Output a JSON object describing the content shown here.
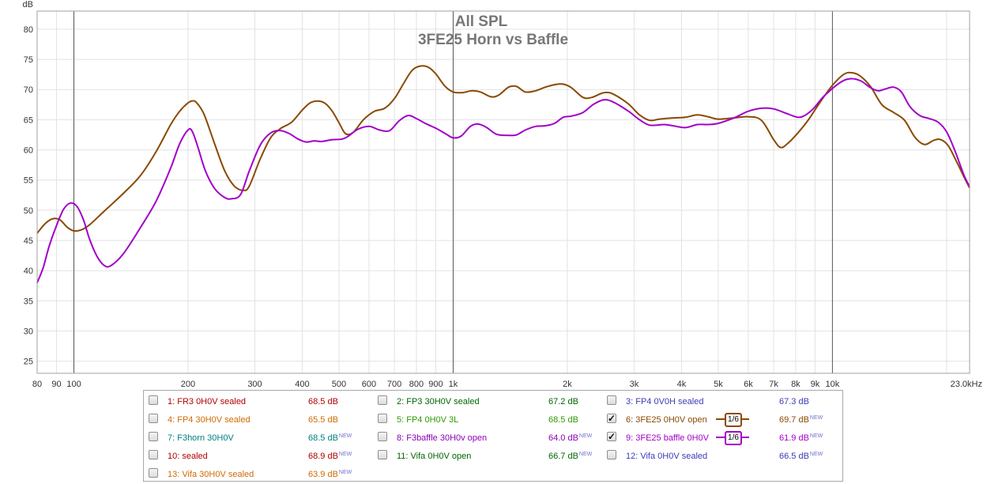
{
  "chart_data": {
    "type": "line",
    "title": "All SPL",
    "subtitle": "3FE25 Horn vs Baffle",
    "y_unit": "dB",
    "x_unit_label": "23.0kHz",
    "xscale": "log",
    "xlim": [
      80,
      23000
    ],
    "ylim": [
      23,
      83
    ],
    "yticks": [
      25,
      30,
      35,
      40,
      45,
      50,
      55,
      60,
      65,
      70,
      75,
      80
    ],
    "xticks": [
      {
        "v": 80,
        "t": "80"
      },
      {
        "v": 90,
        "t": "90"
      },
      {
        "v": 100,
        "t": "100"
      },
      {
        "v": 200,
        "t": "200"
      },
      {
        "v": 300,
        "t": "300"
      },
      {
        "v": 400,
        "t": "400"
      },
      {
        "v": 500,
        "t": "500"
      },
      {
        "v": 600,
        "t": "600"
      },
      {
        "v": 700,
        "t": "700"
      },
      {
        "v": 800,
        "t": "800"
      },
      {
        "v": 900,
        "t": "900"
      },
      {
        "v": 1000,
        "t": "1k"
      },
      {
        "v": 2000,
        "t": "2k"
      },
      {
        "v": 3000,
        "t": "3k"
      },
      {
        "v": 4000,
        "t": "4k"
      },
      {
        "v": 5000,
        "t": "5k"
      },
      {
        "v": 6000,
        "t": "6k"
      },
      {
        "v": 7000,
        "t": "7k"
      },
      {
        "v": 8000,
        "t": "8k"
      },
      {
        "v": 9000,
        "t": "9k"
      },
      {
        "v": 10000,
        "t": "10k"
      }
    ],
    "grid": true,
    "legend_position": "bottom",
    "series": [
      {
        "name": "6: 3FE25 0H0V open",
        "color": "#8a4a00",
        "points": [
          [
            80,
            46.2
          ],
          [
            84,
            47.8
          ],
          [
            88,
            48.6
          ],
          [
            92,
            48.4
          ],
          [
            96,
            47.2
          ],
          [
            100,
            46.6
          ],
          [
            105,
            46.8
          ],
          [
            110,
            47.6
          ],
          [
            120,
            49.8
          ],
          [
            135,
            52.8
          ],
          [
            150,
            55.8
          ],
          [
            165,
            59.8
          ],
          [
            180,
            64.2
          ],
          [
            190,
            66.4
          ],
          [
            200,
            67.8
          ],
          [
            205,
            68.1
          ],
          [
            210,
            67.9
          ],
          [
            220,
            66.0
          ],
          [
            235,
            61.0
          ],
          [
            250,
            56.5
          ],
          [
            265,
            54.0
          ],
          [
            280,
            53.3
          ],
          [
            290,
            54.0
          ],
          [
            310,
            58.5
          ],
          [
            330,
            62.0
          ],
          [
            350,
            63.5
          ],
          [
            375,
            64.6
          ],
          [
            400,
            66.6
          ],
          [
            420,
            67.8
          ],
          [
            440,
            68.1
          ],
          [
            460,
            67.7
          ],
          [
            480,
            66.4
          ],
          [
            500,
            64.5
          ],
          [
            520,
            62.7
          ],
          [
            545,
            62.9
          ],
          [
            580,
            65.0
          ],
          [
            620,
            66.4
          ],
          [
            660,
            66.9
          ],
          [
            700,
            68.5
          ],
          [
            740,
            71.0
          ],
          [
            780,
            73.2
          ],
          [
            820,
            73.9
          ],
          [
            860,
            73.7
          ],
          [
            900,
            72.6
          ],
          [
            950,
            70.6
          ],
          [
            1000,
            69.6
          ],
          [
            1060,
            69.5
          ],
          [
            1120,
            69.8
          ],
          [
            1180,
            69.6
          ],
          [
            1260,
            68.8
          ],
          [
            1320,
            69.1
          ],
          [
            1400,
            70.4
          ],
          [
            1470,
            70.5
          ],
          [
            1550,
            69.6
          ],
          [
            1650,
            69.8
          ],
          [
            1750,
            70.4
          ],
          [
            1850,
            70.8
          ],
          [
            1950,
            70.9
          ],
          [
            2050,
            70.3
          ],
          [
            2200,
            68.7
          ],
          [
            2320,
            68.7
          ],
          [
            2500,
            69.5
          ],
          [
            2650,
            69.2
          ],
          [
            2900,
            67.6
          ],
          [
            3100,
            65.8
          ],
          [
            3300,
            64.9
          ],
          [
            3500,
            65.1
          ],
          [
            3800,
            65.3
          ],
          [
            4100,
            65.4
          ],
          [
            4400,
            65.8
          ],
          [
            4700,
            65.5
          ],
          [
            5000,
            65.1
          ],
          [
            5500,
            65.3
          ],
          [
            6000,
            65.5
          ],
          [
            6500,
            64.9
          ],
          [
            7000,
            61.7
          ],
          [
            7300,
            60.4
          ],
          [
            7600,
            61.0
          ],
          [
            8000,
            62.4
          ],
          [
            8600,
            64.8
          ],
          [
            9300,
            68.0
          ],
          [
            10000,
            70.7
          ],
          [
            10700,
            72.5
          ],
          [
            11200,
            72.8
          ],
          [
            11800,
            72.3
          ],
          [
            12600,
            70.5
          ],
          [
            13500,
            67.5
          ],
          [
            14500,
            66.2
          ],
          [
            15500,
            64.9
          ],
          [
            16500,
            62.1
          ],
          [
            17500,
            60.9
          ],
          [
            18500,
            61.6
          ],
          [
            19300,
            61.7
          ],
          [
            20200,
            60.7
          ],
          [
            21200,
            58.2
          ],
          [
            22200,
            55.6
          ],
          [
            23000,
            53.7
          ]
        ]
      },
      {
        "name": "9: 3FE25 baffle 0H0V",
        "color": "#a300c8",
        "points": [
          [
            80,
            38.0
          ],
          [
            83,
            40.5
          ],
          [
            86,
            44.0
          ],
          [
            90,
            47.5
          ],
          [
            94,
            50.2
          ],
          [
            98,
            51.2
          ],
          [
            102,
            50.6
          ],
          [
            106,
            48.4
          ],
          [
            110,
            45.2
          ],
          [
            115,
            42.4
          ],
          [
            120,
            40.9
          ],
          [
            125,
            40.8
          ],
          [
            135,
            42.8
          ],
          [
            150,
            47.2
          ],
          [
            165,
            51.6
          ],
          [
            180,
            57.0
          ],
          [
            190,
            61.0
          ],
          [
            200,
            63.3
          ],
          [
            205,
            63.1
          ],
          [
            212,
            60.6
          ],
          [
            222,
            56.6
          ],
          [
            235,
            53.6
          ],
          [
            250,
            52.1
          ],
          [
            260,
            51.9
          ],
          [
            275,
            52.6
          ],
          [
            290,
            56.5
          ],
          [
            310,
            60.8
          ],
          [
            330,
            62.8
          ],
          [
            350,
            63.2
          ],
          [
            370,
            62.7
          ],
          [
            390,
            61.8
          ],
          [
            410,
            61.3
          ],
          [
            430,
            61.5
          ],
          [
            450,
            61.4
          ],
          [
            480,
            61.7
          ],
          [
            510,
            61.8
          ],
          [
            530,
            62.3
          ],
          [
            560,
            63.4
          ],
          [
            600,
            63.9
          ],
          [
            640,
            63.3
          ],
          [
            680,
            63.2
          ],
          [
            720,
            64.8
          ],
          [
            760,
            65.7
          ],
          [
            800,
            65.2
          ],
          [
            850,
            64.3
          ],
          [
            900,
            63.6
          ],
          [
            960,
            62.6
          ],
          [
            1000,
            62.0
          ],
          [
            1050,
            62.3
          ],
          [
            1110,
            63.9
          ],
          [
            1160,
            64.3
          ],
          [
            1220,
            63.8
          ],
          [
            1300,
            62.6
          ],
          [
            1400,
            62.4
          ],
          [
            1470,
            62.5
          ],
          [
            1550,
            63.3
          ],
          [
            1650,
            63.9
          ],
          [
            1750,
            64.0
          ],
          [
            1850,
            64.4
          ],
          [
            1950,
            65.4
          ],
          [
            2050,
            65.6
          ],
          [
            2200,
            66.2
          ],
          [
            2350,
            67.6
          ],
          [
            2500,
            68.3
          ],
          [
            2650,
            67.9
          ],
          [
            2900,
            66.4
          ],
          [
            3100,
            65.0
          ],
          [
            3300,
            64.1
          ],
          [
            3600,
            64.2
          ],
          [
            3800,
            64.0
          ],
          [
            4100,
            63.7
          ],
          [
            4400,
            64.2
          ],
          [
            4700,
            64.2
          ],
          [
            5000,
            64.4
          ],
          [
            5500,
            65.3
          ],
          [
            6000,
            66.4
          ],
          [
            6500,
            66.9
          ],
          [
            7000,
            66.8
          ],
          [
            7600,
            66.0
          ],
          [
            8200,
            65.4
          ],
          [
            8800,
            66.5
          ],
          [
            9500,
            68.9
          ],
          [
            10500,
            71.2
          ],
          [
            11200,
            71.8
          ],
          [
            11900,
            71.4
          ],
          [
            12600,
            70.3
          ],
          [
            13200,
            69.8
          ],
          [
            13800,
            70.1
          ],
          [
            14500,
            70.4
          ],
          [
            15200,
            69.6
          ],
          [
            16000,
            67.2
          ],
          [
            17000,
            65.7
          ],
          [
            18000,
            65.2
          ],
          [
            19000,
            64.6
          ],
          [
            20000,
            63.0
          ],
          [
            21000,
            60.0
          ],
          [
            22200,
            55.9
          ],
          [
            23000,
            53.9
          ]
        ]
      }
    ],
    "legend": [
      {
        "label": "1: FR3 0H0V sealed",
        "value": "68.5 dB",
        "new": "",
        "checked": false,
        "label_color": "#b00000",
        "value_color": "#b00000"
      },
      {
        "label": "2: FP3 30H0V sealed",
        "value": "67.2 dB",
        "new": "",
        "checked": false,
        "label_color": "#006600",
        "value_color": "#006600"
      },
      {
        "label": "3: FP4 0V0H sealed",
        "value": "67.3 dB",
        "new": "",
        "checked": false,
        "label_color": "#3b3bb8",
        "value_color": "#3b3bb8"
      },
      {
        "label": "4: FP4 30H0V sealed",
        "value": "65.5 dB",
        "new": "",
        "checked": false,
        "label_color": "#d06a00",
        "value_color": "#d06a00"
      },
      {
        "label": "5: FP4 0H0V 3L",
        "value": "68.5 dB",
        "new": "",
        "checked": false,
        "label_color": "#2e9a00",
        "value_color": "#2e9a00"
      },
      {
        "label": "6: 3FE25 0H0V open",
        "value": "69.7 dB",
        "new": "NEW",
        "checked": true,
        "label_color": "#8a4a00",
        "value_color": "#8a4a00",
        "smoothing": "1/6",
        "line_color": "#8a4a00"
      },
      {
        "label": "7: F3horn 30H0V",
        "value": "68.5 dB",
        "new": "NEW",
        "checked": false,
        "label_color": "#008080",
        "value_color": "#008080"
      },
      {
        "label": "8: F3baffle 30H0v open",
        "value": "64.0 dB",
        "new": "NEW",
        "checked": false,
        "label_color": "#8a00b8",
        "value_color": "#8a00b8"
      },
      {
        "label": "9: 3FE25 baffle 0H0V",
        "value": "61.9 dB",
        "new": "NEW",
        "checked": true,
        "label_color": "#a300c8",
        "value_color": "#a300c8",
        "smoothing": "1/6",
        "line_color": "#a300c8"
      },
      {
        "label": "10: sealed",
        "value": "68.9 dB",
        "new": "NEW",
        "checked": false,
        "label_color": "#b00000",
        "value_color": "#b00000"
      },
      {
        "label": "11: Vifa 0H0V open",
        "value": "66.7 dB",
        "new": "NEW",
        "checked": false,
        "label_color": "#006600",
        "value_color": "#006600"
      },
      {
        "label": "12: Vifa 0H0V sealed",
        "value": "66.5 dB",
        "new": "NEW",
        "checked": false,
        "label_color": "#3b3bb8",
        "value_color": "#3b3bb8"
      },
      {
        "label": "13: Vifa 30H0V sealed",
        "value": "63.9 dB",
        "new": "NEW",
        "checked": false,
        "label_color": "#d06a00",
        "value_color": "#d06a00"
      }
    ]
  },
  "colors": {
    "plot_background": "#ffffff",
    "grid_minor": "#e2e2e2",
    "grid_major": "#555555",
    "frame": "#a0a0a0",
    "tick_text": "#333333",
    "title": "#777777"
  }
}
